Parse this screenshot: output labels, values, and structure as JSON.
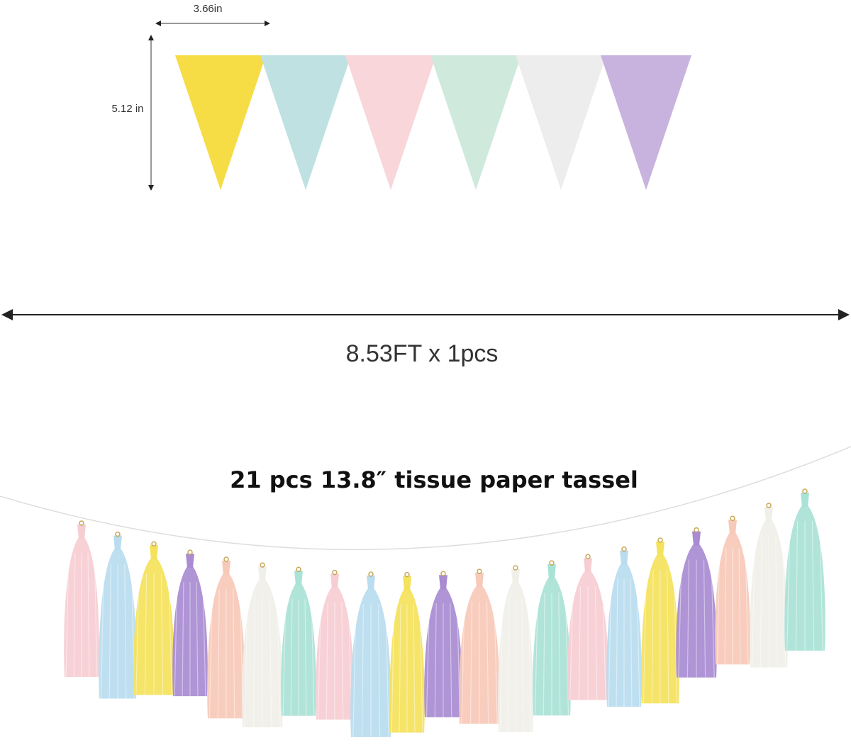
{
  "dimensions": {
    "flag_width": "3.66in",
    "flag_height": "5.12 in",
    "length": "8.53FT x 1pcs"
  },
  "caption": "21 pcs 13.8″ tissue paper  tassel"
}
